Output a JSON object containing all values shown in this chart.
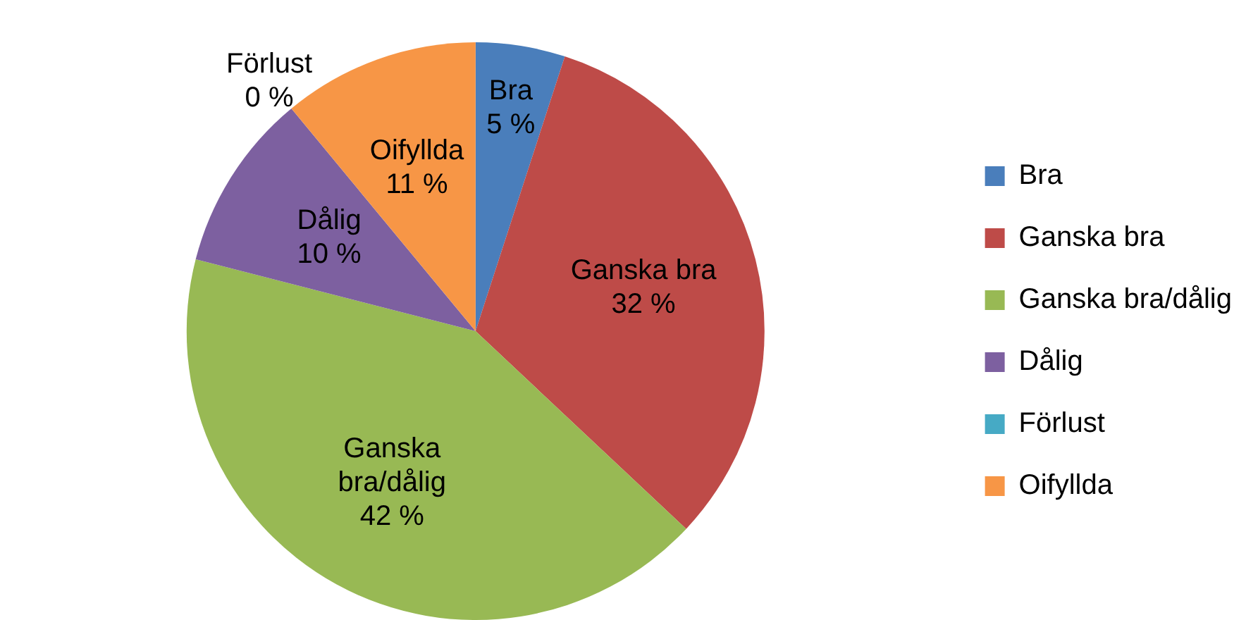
{
  "chart_data": {
    "type": "pie",
    "categories": [
      "Bra",
      "Ganska bra",
      "Ganska bra/dålig",
      "Dålig",
      "Förlust",
      "Oifyllda"
    ],
    "values": [
      5,
      32,
      42,
      10,
      0,
      11
    ],
    "value_labels": [
      "5 %",
      "32 %",
      "42 %",
      "10 %",
      "0 %",
      "11 %"
    ],
    "colors": [
      "#4a7ebb",
      "#be4b48",
      "#98b954",
      "#7d60a0",
      "#46aac5",
      "#f79646"
    ],
    "legend": "right"
  }
}
